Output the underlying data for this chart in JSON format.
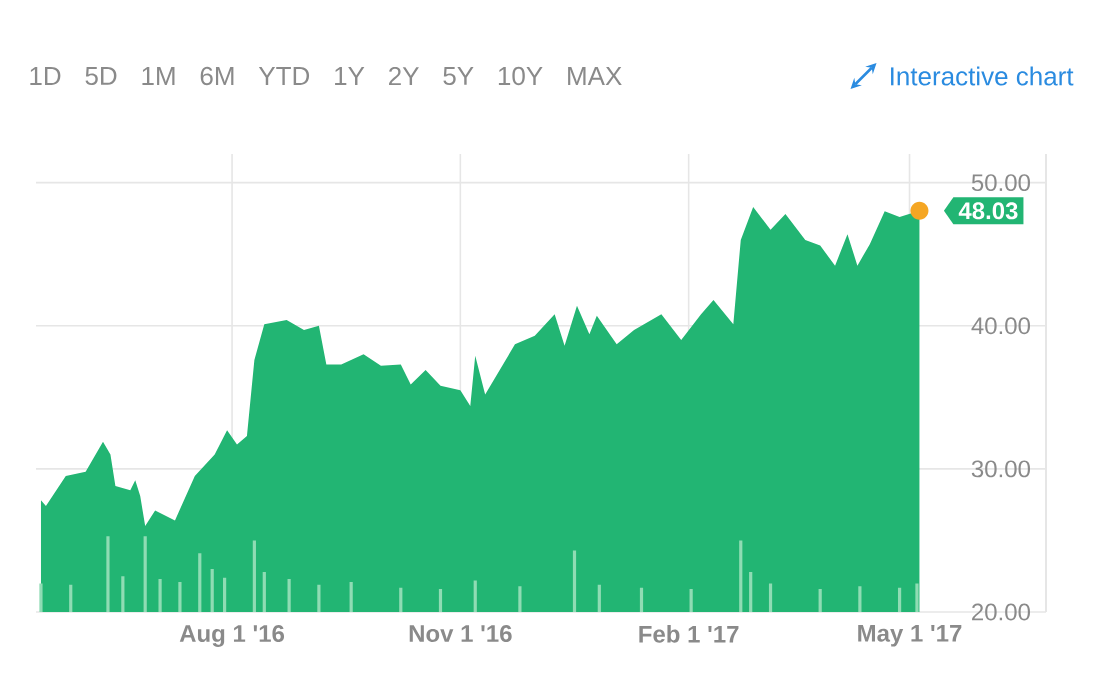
{
  "chart_data": {
    "type": "area",
    "grid": true,
    "marker": "none",
    "xlim": [
      "2016-05-14",
      "2017-06-25"
    ],
    "xticks": [
      {
        "value": "2016-08-01",
        "label": "Aug 1 '16"
      },
      {
        "value": "2016-11-01",
        "label": "Nov 1 '16"
      },
      {
        "value": "2017-02-01",
        "label": "Feb 1 '17"
      },
      {
        "value": "2017-05-01",
        "label": "May 1 '17"
      }
    ],
    "ylim": [
      20,
      52
    ],
    "yticks": [
      {
        "value": 20,
        "label": "20.00"
      },
      {
        "value": 30,
        "label": "30.00"
      },
      {
        "value": 40,
        "label": "40.00"
      },
      {
        "value": 50,
        "label": "50.00"
      }
    ],
    "annotations": [
      "1D",
      "5D",
      "1M",
      "6M",
      "YTD",
      "1Y",
      "2Y",
      "5Y",
      "10Y",
      "MAX",
      "Interactive chart",
      {
        "text": "48.03",
        "x": "2017-05-05",
        "y": 48.03
      }
    ],
    "series": [
      {
        "color": "#22b573",
        "x": [
          "2016-05-16",
          "2016-05-18",
          "2016-05-26",
          "2016-06-03",
          "2016-06-10",
          "2016-06-13",
          "2016-06-15",
          "2016-06-21",
          "2016-06-23",
          "2016-06-25",
          "2016-06-27",
          "2016-07-01",
          "2016-07-09",
          "2016-07-17",
          "2016-07-25",
          "2016-07-30",
          "2016-08-03",
          "2016-08-07",
          "2016-08-10",
          "2016-08-14",
          "2016-08-23",
          "2016-08-30",
          "2016-09-05",
          "2016-09-08",
          "2016-09-14",
          "2016-09-23",
          "2016-09-30",
          "2016-10-08",
          "2016-10-12",
          "2016-10-18",
          "2016-10-24",
          "2016-11-01",
          "2016-11-05",
          "2016-11-07",
          "2016-11-11",
          "2016-11-23",
          "2016-12-01",
          "2016-12-09",
          "2016-12-13",
          "2016-12-18",
          "2016-12-23",
          "2016-12-26",
          "2017-01-03",
          "2017-01-10",
          "2017-01-21",
          "2017-01-29",
          "2017-02-06",
          "2017-02-11",
          "2017-02-19",
          "2017-02-22",
          "2017-02-27",
          "2017-03-06",
          "2017-03-12",
          "2017-03-20",
          "2017-03-26",
          "2017-04-01",
          "2017-04-06",
          "2017-04-10",
          "2017-04-15",
          "2017-04-21",
          "2017-04-27",
          "2017-05-05"
        ],
        "values": [
          27.8,
          27.4,
          29.5,
          29.8,
          31.9,
          31.0,
          28.8,
          28.5,
          29.2,
          28.1,
          26.0,
          27.1,
          26.4,
          29.5,
          31.0,
          32.7,
          31.7,
          32.3,
          37.6,
          40.1,
          40.4,
          39.7,
          40.0,
          37.3,
          37.3,
          38.0,
          37.2,
          37.3,
          35.9,
          36.9,
          35.8,
          35.5,
          34.4,
          37.9,
          35.2,
          38.7,
          39.3,
          40.8,
          38.6,
          41.4,
          39.4,
          40.7,
          38.7,
          39.7,
          40.8,
          39.0,
          40.8,
          41.8,
          40.1,
          46.0,
          48.3,
          46.7,
          47.8,
          46.0,
          45.6,
          44.2,
          46.4,
          44.2,
          45.7,
          48.0,
          47.6,
          48.03
        ]
      },
      {
        "type": "bar",
        "color": "#8fdcb4",
        "x": [
          "2016-05-16",
          "2016-05-28",
          "2016-06-12",
          "2016-06-18",
          "2016-06-27",
          "2016-07-03",
          "2016-07-11",
          "2016-07-19",
          "2016-07-24",
          "2016-07-29",
          "2016-08-10",
          "2016-08-14",
          "2016-08-24",
          "2016-09-05",
          "2016-09-18",
          "2016-10-08",
          "2016-10-24",
          "2016-11-07",
          "2016-11-25",
          "2016-12-17",
          "2016-12-27",
          "2017-01-13",
          "2017-02-02",
          "2017-02-22",
          "2017-02-26",
          "2017-03-06",
          "2017-03-26",
          "2017-04-11",
          "2017-04-27",
          "2017-05-04"
        ],
        "values": [
          22.0,
          21.9,
          25.3,
          22.5,
          25.3,
          22.3,
          22.1,
          24.1,
          23.0,
          22.4,
          25.0,
          22.8,
          22.3,
          21.9,
          22.1,
          21.7,
          21.6,
          22.2,
          21.8,
          24.3,
          21.9,
          21.7,
          21.6,
          25.0,
          22.8,
          22.0,
          21.6,
          21.8,
          21.7,
          22.0
        ]
      }
    ]
  }
}
